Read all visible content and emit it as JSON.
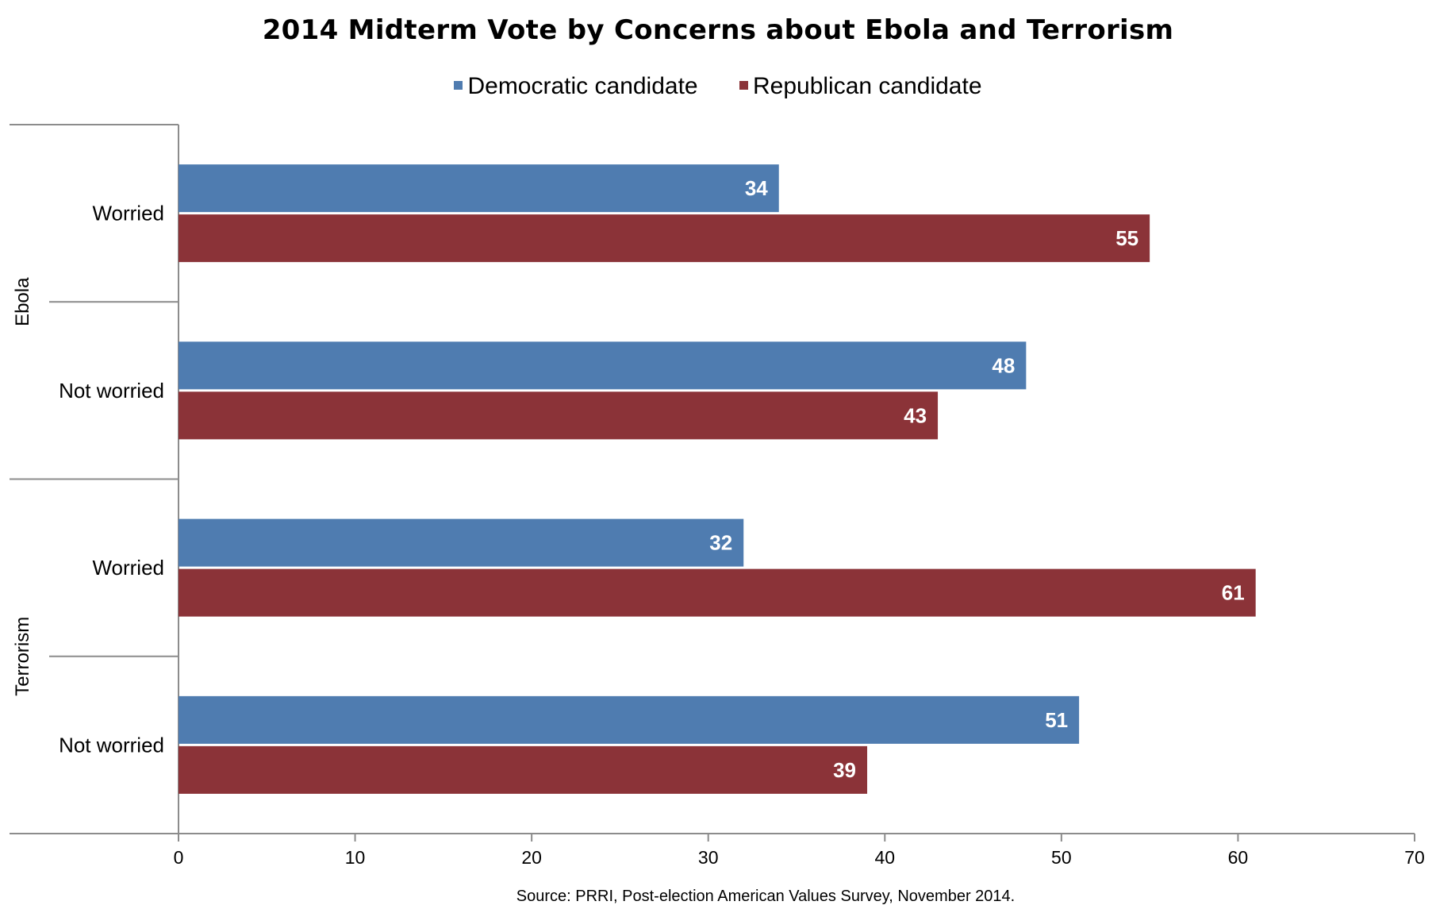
{
  "chart_data": {
    "type": "bar",
    "orientation": "horizontal",
    "title": "2014 Midterm Vote by Concerns about Ebola and Terrorism",
    "groups": [
      {
        "name": "Ebola",
        "categories": [
          "Worried",
          "Not worried"
        ]
      },
      {
        "name": "Terrorism",
        "categories": [
          "Worried",
          "Not worried"
        ]
      }
    ],
    "series": [
      {
        "name": "Democratic candidate",
        "color": "#4f7cb0",
        "values": [
          34,
          48,
          32,
          51
        ]
      },
      {
        "name": "Republican candidate",
        "color": "#8b3338",
        "values": [
          55,
          43,
          61,
          39
        ]
      }
    ],
    "xlim": [
      0,
      70
    ],
    "xticks": [
      0,
      10,
      20,
      30,
      40,
      50,
      60,
      70
    ],
    "grid": false,
    "legend_position": "top",
    "source": "Source: PRRI, Post-election American Values Survey, November 2014."
  }
}
